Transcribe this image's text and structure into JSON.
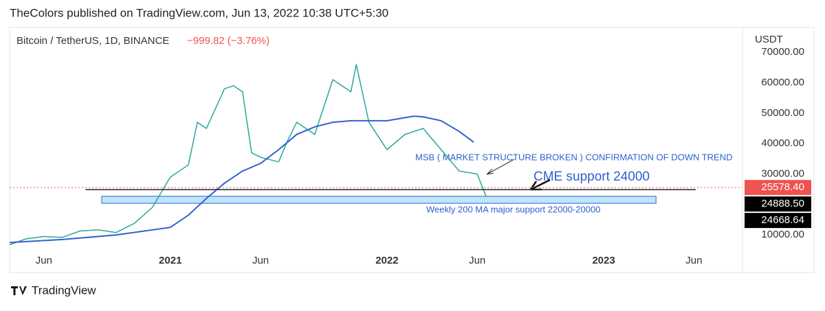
{
  "header": "TheColors published on TradingView.com, Jun 13, 2022 10:38 UTC+5:30",
  "footer": "TradingView",
  "chart_data": {
    "type": "line",
    "title": "Bitcoin / TetherUS, 1D, BINANCE",
    "change": "−999.82 (−3.76%)",
    "y_axis_label": "USDT",
    "series": [
      {
        "color": "#26a69a",
        "x": [
          3.1,
          4,
          5,
          6,
          7,
          8,
          9,
          10,
          11,
          12,
          13,
          13.5,
          14,
          15,
          15.5,
          16,
          16.5,
          17,
          18,
          18.5,
          19,
          20,
          21,
          22,
          22.3,
          23,
          24,
          25,
          26,
          27,
          28,
          29,
          29.5
        ],
        "values": [
          6800,
          8700,
          9500,
          9200,
          11300,
          11700,
          10800,
          13800,
          19000,
          29000,
          33000,
          47000,
          45000,
          58000,
          59000,
          57000,
          37000,
          35500,
          34000,
          41000,
          47000,
          43000,
          61000,
          57000,
          66000,
          47000,
          38000,
          43000,
          45000,
          38000,
          31000,
          30000,
          22500
        ]
      },
      {
        "color": "#2f5fd0",
        "x": [
          3.1,
          6,
          9,
          12,
          13,
          14,
          15,
          16,
          17,
          18,
          19,
          20,
          21,
          22,
          23,
          24,
          25,
          25.5,
          26,
          27,
          28,
          28.8
        ],
        "values": [
          7500,
          8500,
          10000,
          12500,
          16500,
          22000,
          27000,
          31000,
          33500,
          38000,
          43000,
          45500,
          47000,
          47500,
          47500,
          47500,
          48500,
          49000,
          48800,
          47500,
          44000,
          40500
        ]
      }
    ],
    "xlim": [
      3.1,
      43.5
    ],
    "xticks": [
      {
        "value": 5,
        "label": "Jun"
      },
      {
        "value": 12,
        "label": "2021"
      },
      {
        "value": 17,
        "label": "Jun"
      },
      {
        "value": 24,
        "label": "2022"
      },
      {
        "value": 29,
        "label": "Jun"
      },
      {
        "value": 36,
        "label": "2023"
      },
      {
        "value": 41,
        "label": "Jun"
      }
    ],
    "ylim": [
      6000,
      77000
    ],
    "yticks": [
      {
        "value": 10000,
        "label": "10000.00"
      },
      {
        "value": 30000,
        "label": "30000.00"
      },
      {
        "value": 40000,
        "label": "40000.00"
      },
      {
        "value": 50000,
        "label": "50000.00"
      },
      {
        "value": 60000,
        "label": "60000.00"
      },
      {
        "value": 70000,
        "label": "70000.00"
      }
    ],
    "price_labels": [
      {
        "value": 25578.4,
        "label": "25578.40",
        "color": "#ef5350"
      },
      {
        "value": 24888.5,
        "label": "24888.50",
        "color": "#000000"
      },
      {
        "value": 24668.64,
        "label": "24668.64",
        "color": "#000000"
      }
    ],
    "level_x": [
      7.3,
      41.1
    ],
    "zone": {
      "x": [
        8.2,
        38.9
      ],
      "y": [
        20400,
        22700
      ]
    },
    "annotations": [
      "MSB ( MARKET STRUCTURE BROKEN ) CONFIRMATION OF DOWN TREND",
      "CME support 24000",
      "Weekly 200 MA major support 22000-20000"
    ]
  }
}
